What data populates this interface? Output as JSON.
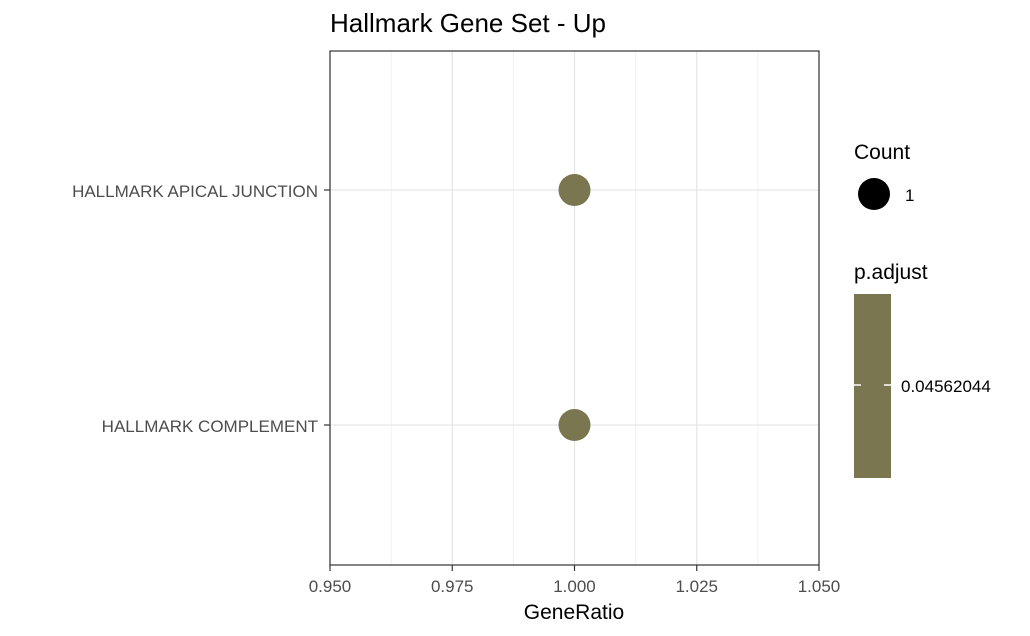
{
  "chart_data": {
    "type": "scatter",
    "title": "Hallmark Gene Set - Up",
    "xlabel": "GeneRatio",
    "ylabel": "",
    "xlim": [
      0.95,
      1.05
    ],
    "xticks": [
      "0.950",
      "0.975",
      "1.000",
      "1.025",
      "1.050"
    ],
    "xtick_values": [
      0.95,
      0.975,
      1.0,
      1.025,
      1.05
    ],
    "categories": [
      "HALLMARK APICAL JUNCTION",
      "HALLMARK COMPLEMENT"
    ],
    "points": [
      {
        "term": "HALLMARK APICAL JUNCTION",
        "gene_ratio": 1.0,
        "count": 1,
        "p_adjust": 0.04562044
      },
      {
        "term": "HALLMARK COMPLEMENT",
        "gene_ratio": 1.0,
        "count": 1,
        "p_adjust": 0.04562044
      }
    ],
    "grid": true,
    "legend": {
      "placement": "right",
      "size_title": "Count",
      "size_label": "1",
      "color_title": "p.adjust",
      "color_label": "0.04562044"
    },
    "point_color": "#7a7650",
    "legend_point_color": "#000000"
  }
}
